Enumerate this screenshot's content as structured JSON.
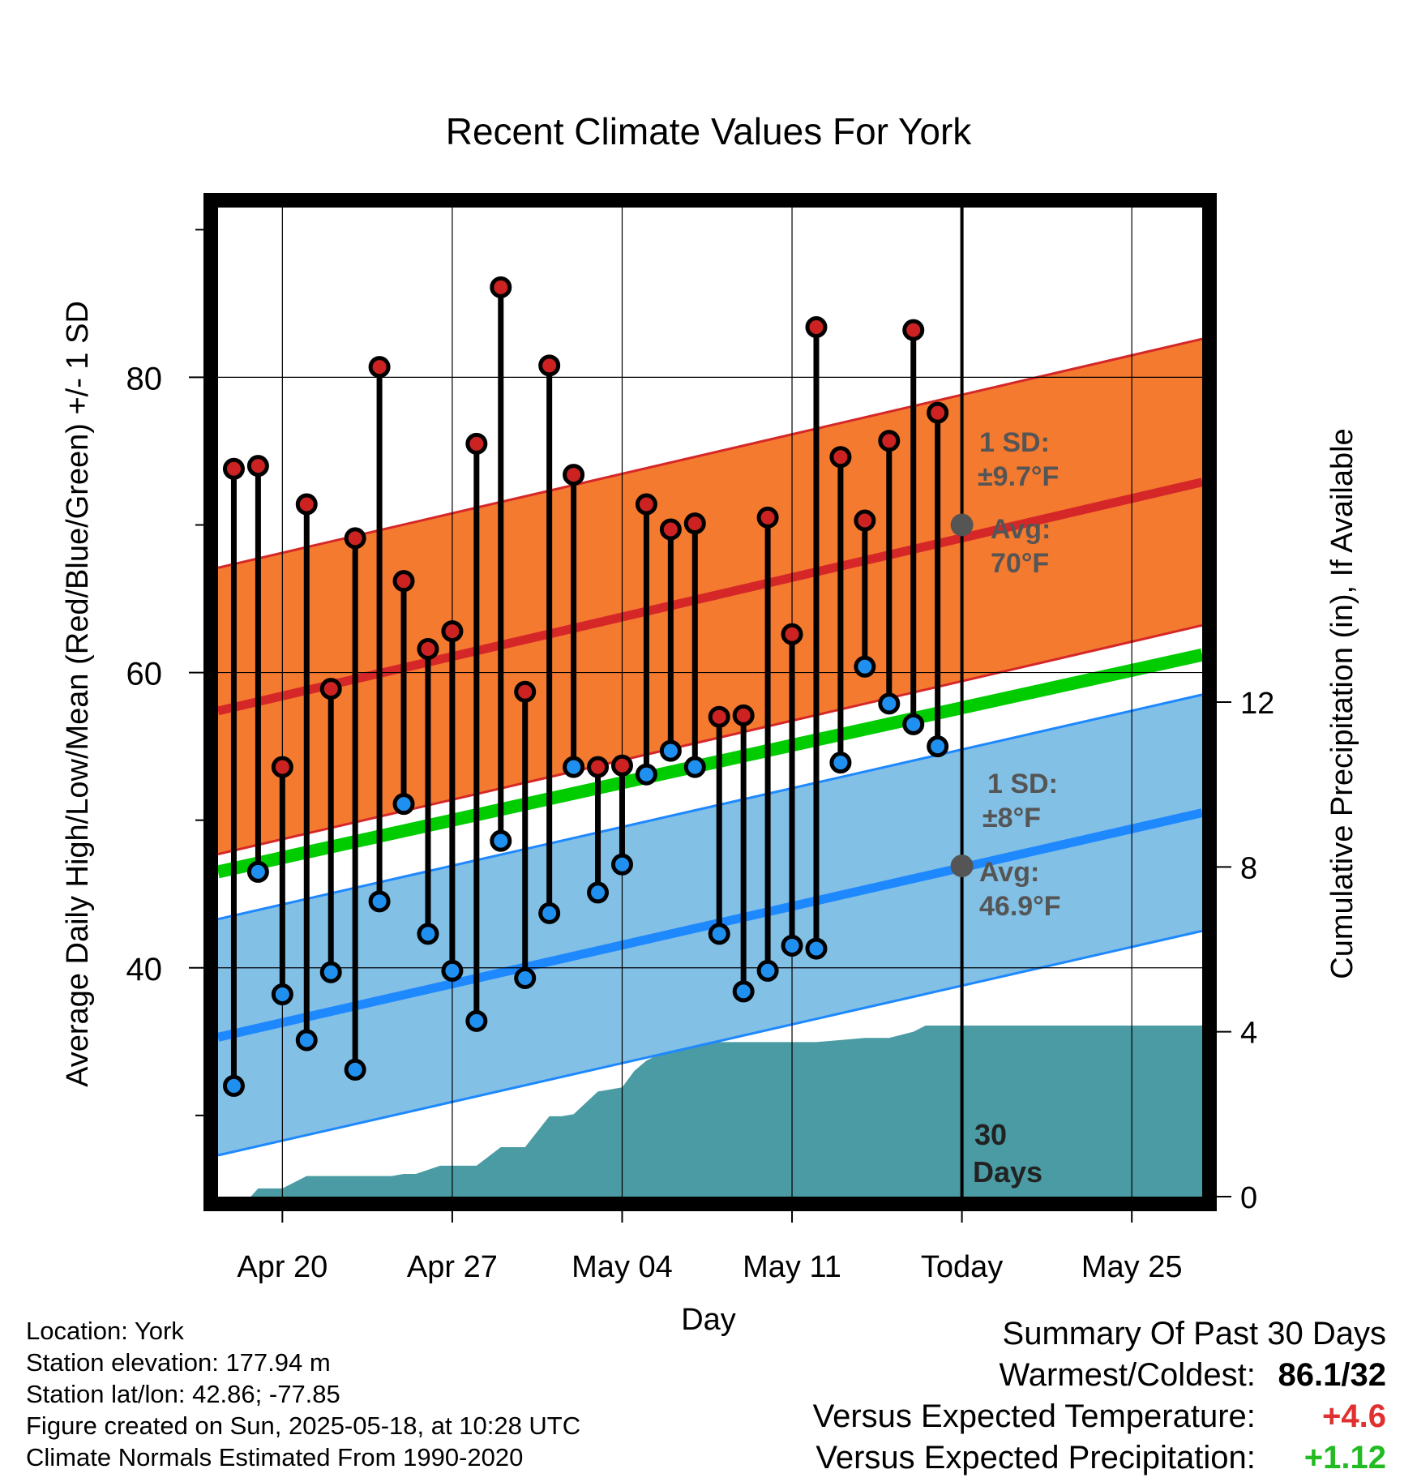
{
  "chart_data": {
    "type": "line",
    "title": "Recent Climate Values For York",
    "xlabel": "Day",
    "ylabel": "Average Daily High/Low/Mean (Red/Blue/Green) +/- 1 SD",
    "y2label": "Cumulative Precipitation (in), If Available",
    "x_tick_labels": [
      "Apr 20",
      "Apr 27",
      "May 04",
      "May 11",
      "Today",
      "May 25"
    ],
    "x_ticks_day": [
      0,
      7,
      14,
      21,
      28,
      35
    ],
    "x_range_day": [
      -2.65,
      37.9
    ],
    "y_ticks": [
      40,
      60,
      80
    ],
    "ylim": [
      24.5,
      91.5
    ],
    "y2_ticks": [
      0,
      4,
      8,
      12
    ],
    "y2lim": [
      0,
      24
    ],
    "normal_high": {
      "start": 57.4,
      "end": 72.9,
      "sd": 9.7,
      "today_avg": 70
    },
    "normal_low": {
      "start": 35.3,
      "end": 50.5,
      "sd": 8,
      "today_avg": 46.9
    },
    "normal_mean": {
      "start": 46.5,
      "end": 61.2
    },
    "daily_days": [
      -2,
      -1,
      0,
      1,
      2,
      3,
      4,
      5,
      6,
      7,
      8,
      9,
      10,
      11,
      12,
      13,
      14,
      15,
      16,
      17,
      18,
      19,
      20,
      21,
      22,
      23,
      24,
      25,
      26,
      27
    ],
    "daily_high": [
      73.8,
      74.0,
      53.6,
      71.4,
      58.9,
      69.1,
      80.7,
      66.2,
      61.6,
      62.8,
      75.5,
      86.1,
      58.7,
      80.8,
      73.4,
      53.6,
      53.7,
      71.4,
      69.7,
      70.1,
      57.0,
      57.1,
      70.5,
      62.6,
      83.4,
      74.6,
      70.3,
      75.7,
      83.2,
      77.6
    ],
    "daily_low": [
      32.0,
      46.5,
      38.2,
      35.1,
      39.7,
      33.1,
      44.5,
      51.1,
      42.3,
      39.8,
      36.4,
      48.6,
      39.3,
      43.7,
      53.6,
      45.1,
      47.0,
      53.1,
      54.7,
      53.6,
      42.3,
      38.4,
      39.8,
      41.5,
      41.3,
      53.9,
      60.4,
      57.9,
      56.5,
      55.0
    ],
    "precip_days": [
      -2.65,
      -1.3,
      -1.0,
      0.0,
      0.5,
      1.0,
      4.5,
      5.0,
      5.5,
      6.5,
      7.0,
      8.0,
      9.0,
      9.5,
      10.0,
      11.0,
      11.5,
      12.0,
      13.0,
      13.5,
      14.0,
      14.5,
      15.0,
      16.0,
      17.0,
      18.0,
      19.0,
      20.0,
      21.0,
      22.0,
      23.0,
      24.0,
      25.0,
      26.0,
      26.5,
      27.0,
      37.9
    ],
    "precip_cum": [
      0,
      0,
      0.2,
      0.2,
      0.35,
      0.5,
      0.5,
      0.55,
      0.55,
      0.75,
      0.75,
      0.75,
      1.2,
      1.2,
      1.2,
      1.95,
      1.95,
      2.0,
      2.55,
      2.6,
      2.65,
      3.05,
      3.3,
      3.6,
      3.75,
      3.75,
      3.75,
      3.75,
      3.75,
      3.75,
      3.8,
      3.85,
      3.85,
      4.0,
      4.15,
      4.15,
      4.15
    ],
    "annotations": {
      "high_sd_label": "1 SD:",
      "high_sd_value": "±9.7°F",
      "high_avg_label": "Avg:",
      "high_avg_value": "70°F",
      "low_sd_label": "1 SD:",
      "low_sd_value": "±8°F",
      "low_avg_label": "Avg:",
      "low_avg_value": "46.9°F",
      "period_line1": "30",
      "period_line2": "Days"
    },
    "colors": {
      "high_band": "#f47a30",
      "high_line": "#d62728",
      "low_band": "#82c0e6",
      "low_line": "#1e88ff",
      "mean_line": "#00cc00",
      "precip": "#4a9ba3",
      "high_dot": "#cc2222",
      "low_dot": "#2090f0",
      "annotation": "#555555"
    },
    "grid": true
  },
  "info": {
    "location": "Location: York",
    "elevation": "Station elevation: 177.94 m",
    "latlon": "Station lat/lon: 42.86; -77.85",
    "created": "Figure created on Sun, 2025-05-18, at 10:28 UTC",
    "normals": "Climate Normals Estimated From 1990-2020"
  },
  "summary": {
    "heading": "Summary Of Past 30 Days",
    "warmest_label": "Warmest/Coldest:",
    "warmest_value": "86.1/32",
    "temp_label": "Versus Expected Temperature:",
    "temp_value": "+4.6",
    "temp_color": "#e03030",
    "precip_label": "Versus Expected Precipitation:",
    "precip_value": "+1.12",
    "precip_color": "#22bb22"
  }
}
